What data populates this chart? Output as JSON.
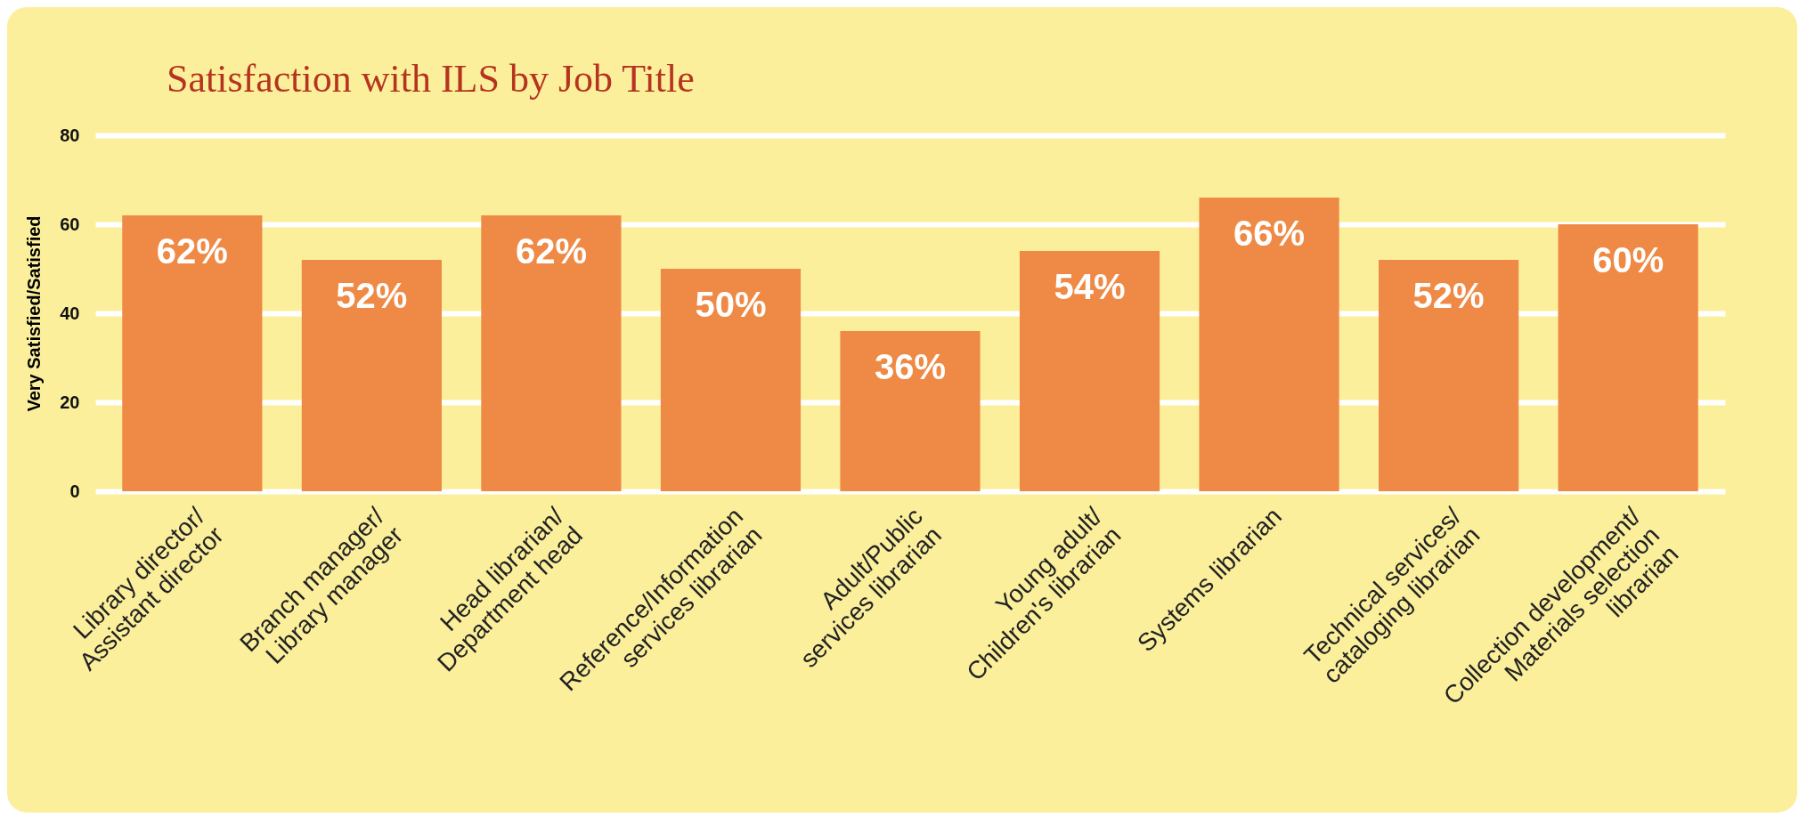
{
  "chart_data": {
    "type": "bar",
    "title": "Satisfaction with ILS by Job Title",
    "ylabel": "Very Satisfied/Satisfied",
    "categories": [
      "Library director/\nAssistant director",
      "Branch manager/\nLibrary manager",
      "Head librarian/\nDepartment head",
      "Reference/Information\nservices librarian",
      "Adult/Public\nservices librarian",
      "Young adult/\nChildren's librarian",
      "Systems librarian",
      "Technical services/\ncataloging librarian",
      "Collection development/\nMaterials selection\nlibrarian"
    ],
    "values": [
      62,
      52,
      62,
      50,
      36,
      54,
      66,
      52,
      60
    ],
    "value_labels": [
      "62%",
      "52%",
      "62%",
      "50%",
      "36%",
      "54%",
      "66%",
      "52%",
      "60%"
    ],
    "color": "#ee8a45",
    "ylim": [
      0,
      80
    ],
    "yticks": [
      0,
      20,
      40,
      60,
      80
    ],
    "grid": "y"
  }
}
